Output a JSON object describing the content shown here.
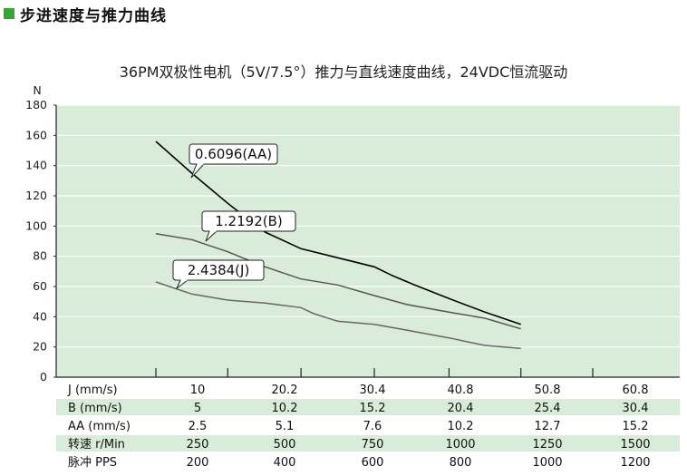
{
  "header": {
    "title": "步进速度与推力曲线"
  },
  "colors": {
    "plot_bg": "#d9ecd9",
    "header_square": "#3aa537",
    "band": "#d9ecd9"
  },
  "chart_data": {
    "type": "line",
    "title": "36PM双极性电机（5V/7.5°）推力与直线速度曲线，24VDC恒流驱动",
    "ylabel": "N",
    "ylim": [
      0,
      180
    ],
    "yticks": [
      0,
      20,
      40,
      60,
      80,
      100,
      120,
      140,
      160,
      180
    ],
    "xlim": [
      0,
      60.8
    ],
    "x_axis_variable": "J (mm/s)",
    "grid": true,
    "series": [
      {
        "name": "0.6096(AA)",
        "color": "#000000",
        "points": [
          [
            0,
            156
          ],
          [
            5,
            135
          ],
          [
            10,
            115
          ],
          [
            15.2,
            96
          ],
          [
            20.2,
            85
          ],
          [
            25.3,
            79
          ],
          [
            30.4,
            73
          ],
          [
            33,
            67
          ],
          [
            36,
            61
          ],
          [
            40.8,
            52
          ],
          [
            45.8,
            43
          ],
          [
            50.8,
            35
          ]
        ]
      },
      {
        "name": "1.2192(B)",
        "color": "#555555",
        "points": [
          [
            0,
            95
          ],
          [
            5,
            91
          ],
          [
            10,
            83
          ],
          [
            15.2,
            73
          ],
          [
            20.2,
            65
          ],
          [
            25.3,
            61
          ],
          [
            30.4,
            54
          ],
          [
            35,
            48
          ],
          [
            40.8,
            43
          ],
          [
            45.8,
            39
          ],
          [
            50.8,
            32
          ]
        ]
      },
      {
        "name": "2.4384(J)",
        "color": "#666666",
        "points": [
          [
            0,
            63
          ],
          [
            5,
            55
          ],
          [
            10,
            51
          ],
          [
            15.2,
            49
          ],
          [
            20.2,
            46
          ],
          [
            22,
            42
          ],
          [
            25.3,
            37
          ],
          [
            30.4,
            35
          ],
          [
            35,
            31
          ],
          [
            40.8,
            26
          ],
          [
            45.8,
            21
          ],
          [
            50.8,
            19
          ]
        ]
      }
    ],
    "callouts": [
      {
        "text": "0.6096(AA)",
        "series": 0
      },
      {
        "text": "1.2192(B)",
        "series": 1
      },
      {
        "text": "2.4384(J)",
        "series": 2
      }
    ],
    "table": {
      "rows": [
        {
          "label": "J (mm/s)",
          "values": [
            "10",
            "20.2",
            "30.4",
            "40.8",
            "50.8",
            "60.8"
          ],
          "shaded": false
        },
        {
          "label": "B (mm/s)",
          "values": [
            "5",
            "10.2",
            "15.2",
            "20.4",
            "25.4",
            "30.4"
          ],
          "shaded": true
        },
        {
          "label": "AA (mm/s)",
          "values": [
            "2.5",
            "5.1",
            "7.6",
            "10.2",
            "12.7",
            "15.2"
          ],
          "shaded": false
        },
        {
          "label": "转速 r/Min",
          "values": [
            "250",
            "500",
            "750",
            "1000",
            "1250",
            "1500"
          ],
          "shaded": true
        },
        {
          "label": "脉冲 PPS",
          "values": [
            "200",
            "400",
            "600",
            "800",
            "1000",
            "1200"
          ],
          "shaded": false
        }
      ]
    }
  }
}
